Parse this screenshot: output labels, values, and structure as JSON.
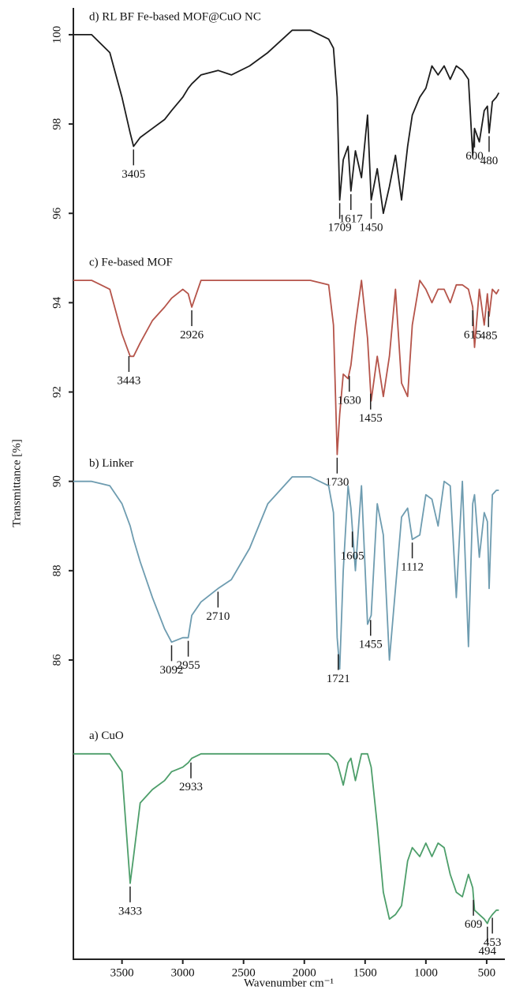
{
  "chart_data": {
    "type": "line",
    "y_label": "Transmittance [%]",
    "x_label": "Wavenumber cm⁻¹",
    "xlim": [
      3900,
      350
    ],
    "xticks": [
      3500,
      3000,
      2500,
      2000,
      1500,
      1000,
      500
    ],
    "ylim": [
      79.3,
      100.6
    ],
    "yticks": [
      86,
      88,
      90,
      92,
      94,
      96,
      98,
      100
    ],
    "grid": false,
    "x": [
      3900,
      3750,
      3600,
      3500,
      3433,
      3405,
      3350,
      3250,
      3150,
      3092,
      3000,
      2955,
      2926,
      2850,
      2710,
      2600,
      2450,
      2300,
      2100,
      1950,
      1800,
      1760,
      1730,
      1709,
      1680,
      1640,
      1617,
      1580,
      1530,
      1480,
      1450,
      1400,
      1350,
      1300,
      1250,
      1200,
      1150,
      1112,
      1050,
      1000,
      950,
      900,
      850,
      800,
      750,
      700,
      650,
      615,
      600,
      560,
      520,
      494,
      480,
      453,
      420,
      400
    ],
    "series": [
      {
        "name": "d) RL BF Fe-based MOF@CuO NC",
        "color": "#1c1c1c",
        "values": [
          100.0,
          100.0,
          99.6,
          98.6,
          97.8,
          97.5,
          97.7,
          97.9,
          98.1,
          98.3,
          98.6,
          98.8,
          98.9,
          99.1,
          99.2,
          99.1,
          99.3,
          99.6,
          100.1,
          100.1,
          99.9,
          99.7,
          98.6,
          96.3,
          97.2,
          97.5,
          96.5,
          97.4,
          96.8,
          98.2,
          96.3,
          97.0,
          96.0,
          96.6,
          97.3,
          96.3,
          97.5,
          98.2,
          98.6,
          98.8,
          99.3,
          99.1,
          99.3,
          99.0,
          99.3,
          99.2,
          99.0,
          97.3,
          97.9,
          97.6,
          98.3,
          98.4,
          97.8,
          98.5,
          98.6,
          98.7
        ],
        "peaks": [
          3405,
          1709,
          1617,
          1450,
          600,
          480
        ]
      },
      {
        "name": "c) Fe-based MOF",
        "color": "#b5544a",
        "values": [
          94.5,
          94.5,
          94.3,
          93.3,
          92.8,
          92.8,
          93.1,
          93.6,
          93.9,
          94.1,
          94.3,
          94.2,
          93.9,
          94.5,
          94.5,
          94.5,
          94.5,
          94.5,
          94.5,
          94.5,
          94.4,
          93.5,
          90.6,
          91.5,
          92.4,
          92.3,
          92.6,
          93.5,
          94.5,
          93.2,
          91.8,
          92.8,
          91.9,
          92.8,
          94.3,
          92.2,
          91.9,
          93.5,
          94.5,
          94.3,
          94.0,
          94.3,
          94.3,
          94.0,
          94.4,
          94.4,
          94.3,
          93.9,
          93.0,
          94.3,
          93.5,
          94.2,
          93.7,
          94.3,
          94.2,
          94.3
        ],
        "peaks": [
          3443,
          2926,
          1730,
          1630,
          1455,
          615,
          485
        ]
      },
      {
        "name": "b) Linker",
        "color": "#6e9cb0",
        "values": [
          90.0,
          90.0,
          89.9,
          89.5,
          89.0,
          88.7,
          88.2,
          87.4,
          86.7,
          86.4,
          86.5,
          86.5,
          87.0,
          87.3,
          87.6,
          87.8,
          88.5,
          89.5,
          90.1,
          90.1,
          89.9,
          89.3,
          86.5,
          85.8,
          88.0,
          89.9,
          89.4,
          88.0,
          89.9,
          86.8,
          87.0,
          89.5,
          88.8,
          86.0,
          87.6,
          89.2,
          89.4,
          88.7,
          88.8,
          89.7,
          89.6,
          89.0,
          90.0,
          89.9,
          87.4,
          90.0,
          86.3,
          89.5,
          89.7,
          88.3,
          89.3,
          89.1,
          87.6,
          89.7,
          89.8,
          89.8
        ],
        "peaks": [
          3092,
          2955,
          2710,
          1721,
          1605,
          1455,
          1112
        ]
      },
      {
        "name": "a) CuO",
        "color": "#4d9e6a",
        "values": [
          83.9,
          83.9,
          83.9,
          83.5,
          81.0,
          81.6,
          82.8,
          83.1,
          83.3,
          83.5,
          83.6,
          83.7,
          83.8,
          83.9,
          83.9,
          83.9,
          83.9,
          83.9,
          83.9,
          83.9,
          83.9,
          83.8,
          83.7,
          83.5,
          83.2,
          83.7,
          83.8,
          83.3,
          83.9,
          83.9,
          83.6,
          82.3,
          80.8,
          80.2,
          80.3,
          80.5,
          81.5,
          81.8,
          81.6,
          81.9,
          81.6,
          81.9,
          81.8,
          81.2,
          80.8,
          80.7,
          81.2,
          80.9,
          80.4,
          80.3,
          80.2,
          80.1,
          80.2,
          80.3,
          80.4,
          80.4
        ],
        "peaks": [
          3433,
          2933,
          609,
          494,
          453
        ]
      }
    ]
  }
}
